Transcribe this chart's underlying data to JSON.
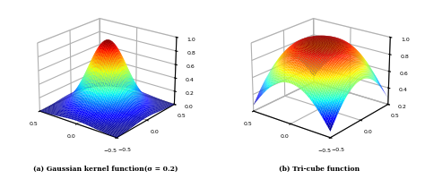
{
  "sigma": 0.2,
  "xlim": [
    -0.5,
    0.5
  ],
  "ylim": [
    -0.5,
    0.5
  ],
  "zlim_gauss": [
    0,
    1
  ],
  "zlim_tricube": [
    0.2,
    1
  ],
  "xticks": [
    -0.5,
    0,
    0.5
  ],
  "yticks": [
    -0.5,
    0,
    0.5
  ],
  "zticks_gauss": [
    0,
    0.2,
    0.4,
    0.6,
    0.8,
    1
  ],
  "zticks_tricube": [
    0.2,
    0.4,
    0.6,
    0.8,
    1.0
  ],
  "label_a_bold": "(a)",
  "label_a_rest": " Gaussian kernel function(σ = 0.2)",
  "label_b_bold": "(b)",
  "label_b_rest": " Tri-cube function",
  "elev": 22,
  "azim_gauss": -52,
  "azim_tricube": -52,
  "figsize": [
    4.74,
    2.01
  ],
  "dpi": 100,
  "n_points": 60
}
